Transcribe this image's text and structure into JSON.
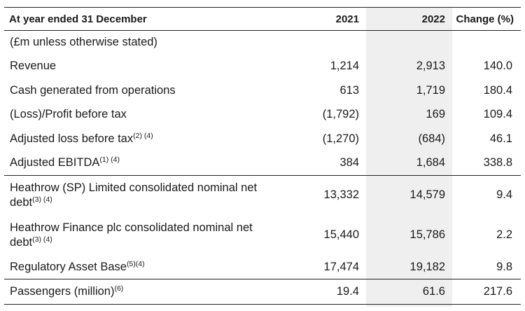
{
  "header": {
    "label": "At year ended 31 December",
    "col_2021": "2021",
    "col_2022": "2022",
    "col_change": "Change (%)"
  },
  "units_note": "(£m unless otherwise stated)",
  "rows": [
    {
      "label": "Revenue",
      "sup": "",
      "v2021": "1,214",
      "v2022": "2,913",
      "change": "140.0"
    },
    {
      "label": "Cash generated from operations",
      "sup": "",
      "v2021": "613",
      "v2022": "1,719",
      "change": "180.4"
    },
    {
      "label": "(Loss)/Profit before tax",
      "sup": "",
      "v2021": "(1,792)",
      "v2022": "169",
      "change": "109.4"
    },
    {
      "label": "Adjusted loss before tax",
      "sup": "(2) (4)",
      "v2021": "(1,270)",
      "v2022": "(684)",
      "change": "46.1"
    },
    {
      "label": "Adjusted EBITDA",
      "sup": "(1) (4)",
      "v2021": "384",
      "v2022": "1,684",
      "change": "338.8"
    },
    {
      "label_line1": "Heathrow (SP) Limited consolidated nominal net",
      "label_line2": "debt",
      "sup": "(3) (4)",
      "v2021": "13,332",
      "v2022": "14,579",
      "change": "9.4"
    },
    {
      "label_line1": "Heathrow Finance plc consolidated nominal net",
      "label_line2": "debt",
      "sup": "(3) (4)",
      "v2021": "15,440",
      "v2022": "15,786",
      "change": "2.2"
    },
    {
      "label": "Regulatory Asset Base",
      "sup": "(5)(4)",
      "v2021": "17,474",
      "v2022": "19,182",
      "change": "9.8"
    },
    {
      "label": "Passengers (million)",
      "sup": "(6)",
      "v2021": "19.4",
      "v2022": "61.6",
      "change": "217.6"
    }
  ]
}
